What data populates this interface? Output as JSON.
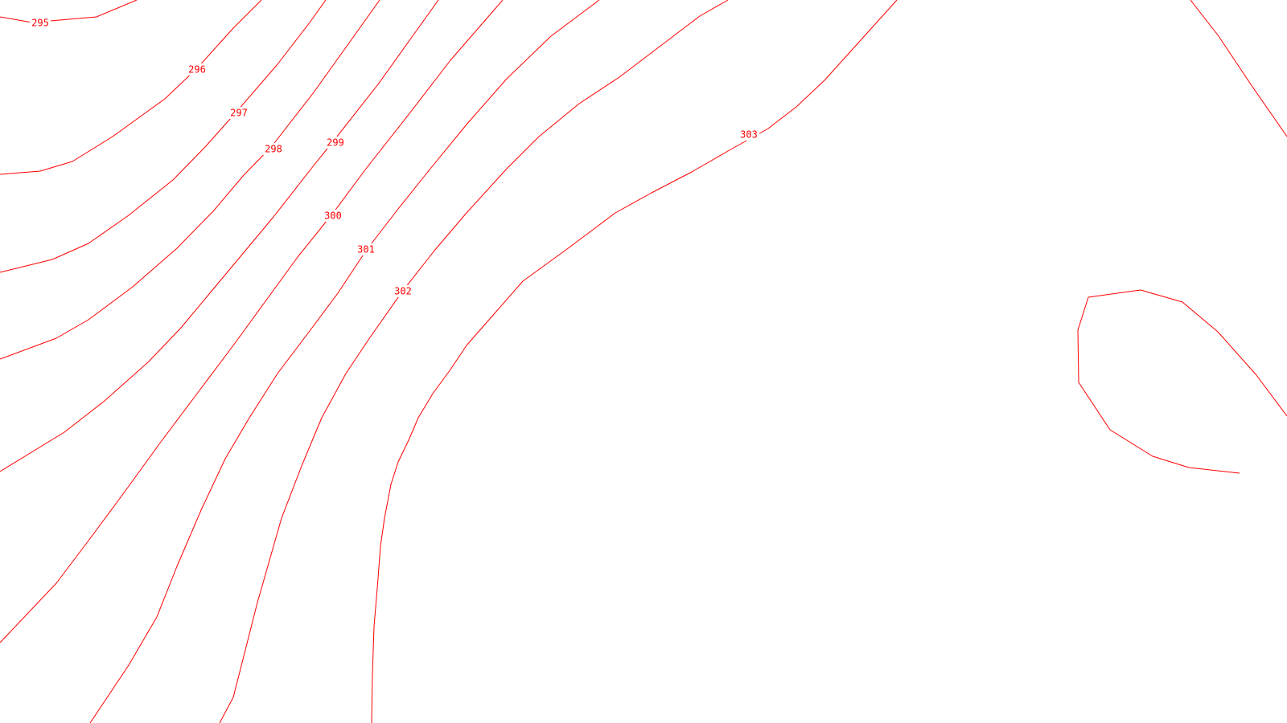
{
  "map": {
    "style": {
      "background_color": "#ffffff",
      "contour_color": "#ff0000"
    },
    "contours": [
      {
        "id": "295",
        "label": "295"
      },
      {
        "id": "296",
        "label": "296"
      },
      {
        "id": "297",
        "label": "297"
      },
      {
        "id": "298",
        "label": "298"
      },
      {
        "id": "299",
        "label": "299"
      },
      {
        "id": "300",
        "label": "300"
      },
      {
        "id": "301",
        "label": "301"
      },
      {
        "id": "302",
        "label": "302"
      },
      {
        "id": "303",
        "label": "303"
      }
    ]
  }
}
